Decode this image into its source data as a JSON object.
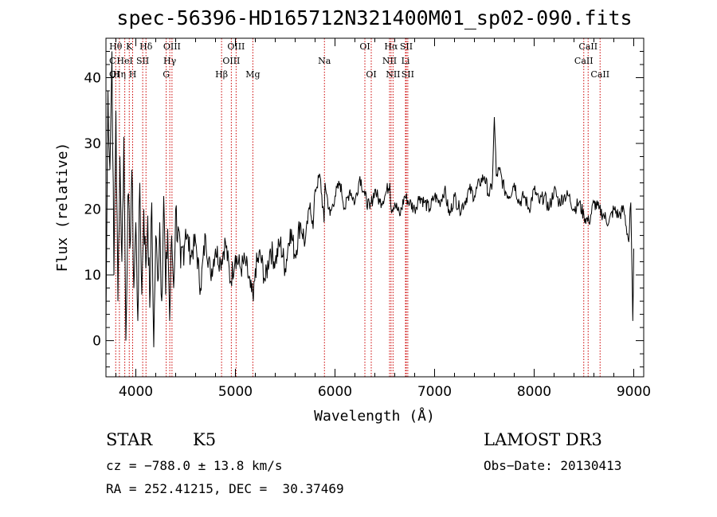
{
  "chart_data": {
    "type": "line",
    "title": "spec-56396-HD165712N321400M01_sp02-090.fits",
    "xlabel": "Wavelength (Å)",
    "ylabel": "Flux (relative)",
    "xlim": [
      3700,
      9100
    ],
    "ylim": [
      -5.5,
      46
    ],
    "xticks": [
      4000,
      5000,
      6000,
      7000,
      8000,
      9000
    ],
    "xtick_labels": [
      "4000",
      "5000",
      "6000",
      "7000",
      "8000",
      "9000"
    ],
    "yticks": [
      0,
      10,
      20,
      30,
      40
    ],
    "ytick_labels": [
      "0",
      "10",
      "20",
      "30",
      "40"
    ],
    "series": [
      {
        "name": "flux",
        "x": [
          3700,
          3720,
          3740,
          3760,
          3780,
          3800,
          3820,
          3840,
          3860,
          3880,
          3900,
          3920,
          3940,
          3960,
          3980,
          4000,
          4020,
          4040,
          4060,
          4080,
          4100,
          4120,
          4140,
          4160,
          4180,
          4200,
          4220,
          4240,
          4260,
          4280,
          4300,
          4320,
          4340,
          4360,
          4380,
          4400,
          4450,
          4500,
          4550,
          4600,
          4650,
          4700,
          4750,
          4800,
          4850,
          4900,
          4950,
          5000,
          5050,
          5100,
          5150,
          5180,
          5200,
          5250,
          5300,
          5350,
          5400,
          5450,
          5500,
          5550,
          5600,
          5650,
          5700,
          5750,
          5780,
          5800,
          5850,
          5890,
          5900,
          5950,
          6000,
          6050,
          6100,
          6150,
          6200,
          6250,
          6300,
          6350,
          6400,
          6450,
          6500,
          6550,
          6563,
          6600,
          6650,
          6700,
          6750,
          6800,
          6850,
          6900,
          6950,
          7000,
          7050,
          7100,
          7150,
          7200,
          7250,
          7300,
          7350,
          7400,
          7450,
          7500,
          7550,
          7580,
          7600,
          7620,
          7650,
          7700,
          7750,
          7800,
          7850,
          7900,
          7950,
          8000,
          8050,
          8100,
          8150,
          8200,
          8250,
          8300,
          8350,
          8400,
          8450,
          8500,
          8550,
          8600,
          8650,
          8700,
          8750,
          8800,
          8850,
          8900,
          8950,
          8970,
          8990,
          9000
        ],
        "y": [
          2,
          38,
          26,
          44,
          10,
          35,
          6,
          28,
          12,
          31,
          0,
          22,
          14,
          26,
          8,
          18,
          3,
          24,
          7,
          20,
          11,
          19,
          5,
          21,
          -1,
          16,
          9,
          18,
          6,
          22,
          7,
          17,
          3,
          16,
          8,
          20,
          11,
          17,
          13,
          15,
          8,
          16,
          10,
          14,
          12,
          15,
          9,
          13,
          11,
          12,
          8,
          6,
          11,
          13,
          9,
          14,
          12,
          15,
          11,
          17,
          13,
          18,
          15,
          21,
          17,
          23,
          25,
          18,
          24,
          19,
          22,
          24,
          20,
          23,
          21,
          25,
          22,
          20,
          23,
          21,
          22,
          24,
          20,
          21,
          19,
          22,
          21,
          20,
          22,
          21,
          20,
          22,
          21,
          23,
          19,
          22,
          20,
          21,
          23,
          22,
          24,
          25,
          22,
          24,
          34,
          25,
          26,
          23,
          22,
          24,
          21,
          22,
          20,
          23,
          21,
          22,
          20,
          23,
          21,
          22,
          22,
          20,
          21,
          19,
          18,
          21,
          20,
          19,
          18,
          20,
          19,
          20,
          15,
          21,
          3,
          14
        ]
      }
    ],
    "lines": [
      {
        "label": "Hθ",
        "x": 3798,
        "row": 0
      },
      {
        "label": "Hη",
        "x": 3835,
        "row": 2
      },
      {
        "label": "K",
        "x": 3934,
        "row": 0
      },
      {
        "label": "H",
        "x": 3968,
        "row": 2
      },
      {
        "label": "HeI",
        "x": 3889,
        "row": 1
      },
      {
        "label": "SII",
        "x": 4069,
        "row": 1
      },
      {
        "label": "Hδ",
        "x": 4102,
        "row": 0
      },
      {
        "label": "G",
        "x": 4305,
        "row": 2
      },
      {
        "label": "Hγ",
        "x": 4341,
        "row": 1
      },
      {
        "label": "OIII",
        "x": 4363,
        "row": 0
      },
      {
        "label": "Hβ",
        "x": 4861,
        "row": 2
      },
      {
        "label": "OIII",
        "x": 4959,
        "row": 1
      },
      {
        "label": "OIII",
        "x": 5007,
        "row": 0
      },
      {
        "label": "Mg",
        "x": 5175,
        "row": 2
      },
      {
        "label": "Na",
        "x": 5894,
        "row": 1
      },
      {
        "label": "OI",
        "x": 6300,
        "row": 0
      },
      {
        "label": "OI",
        "x": 6364,
        "row": 2
      },
      {
        "label": "NII",
        "x": 6548,
        "row": 1
      },
      {
        "label": "Hα",
        "x": 6563,
        "row": 0
      },
      {
        "label": "NII",
        "x": 6583,
        "row": 2
      },
      {
        "label": "Li",
        "x": 6708,
        "row": 1
      },
      {
        "label": "SII",
        "x": 6716,
        "row": 0
      },
      {
        "label": "SII",
        "x": 6731,
        "row": 2
      },
      {
        "label": "CaII",
        "x": 8498,
        "row": 1
      },
      {
        "label": "CaII",
        "x": 8542,
        "row": 0
      },
      {
        "label": "CaII",
        "x": 8662,
        "row": 2
      }
    ],
    "extra_left_labels": [
      {
        "label": "C",
        "row": 1
      },
      {
        "label": "OI",
        "row": 2
      }
    ],
    "grid": false,
    "legend": "none"
  },
  "info": {
    "class_label": "STAR",
    "subclass_label": "K5",
    "survey_label": "LAMOST DR3",
    "cz_line": "cz = −788.0 ± 13.8 km/s",
    "obs_date_line": "Obs−Date: 20130413",
    "radec_line": "RA = 252.41215, DEC =  30.37469"
  },
  "colors": {
    "line_marker": "#cc0000",
    "spectrum": "#000000"
  }
}
